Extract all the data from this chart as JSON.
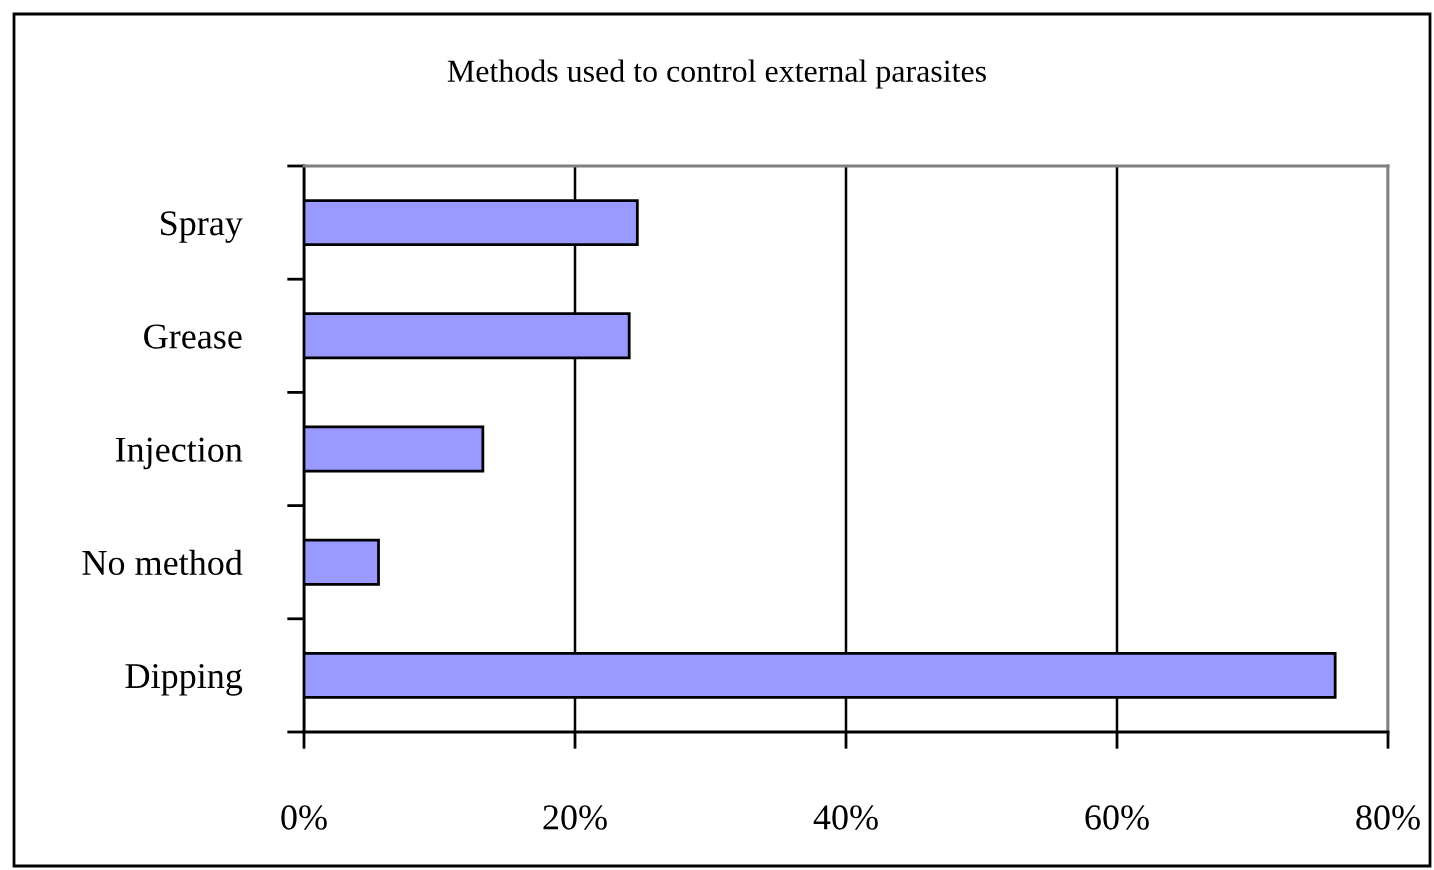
{
  "chart_data": {
    "type": "bar",
    "orientation": "horizontal",
    "title": "Methods used to control external parasites",
    "categories": [
      "Spray",
      "Grease",
      "Injection",
      "No method",
      "Dipping"
    ],
    "values": [
      24.6,
      24.0,
      13.2,
      5.5,
      76.1
    ],
    "color": "#9999ff",
    "xlim": [
      0,
      80
    ],
    "xticks": [
      {
        "value": 0,
        "label": "0%"
      },
      {
        "value": 20,
        "label": "20%"
      },
      {
        "value": 40,
        "label": "40%"
      },
      {
        "value": 60,
        "label": "60%"
      },
      {
        "value": 80,
        "label": "80%"
      }
    ],
    "grid": "x",
    "legend": false
  }
}
